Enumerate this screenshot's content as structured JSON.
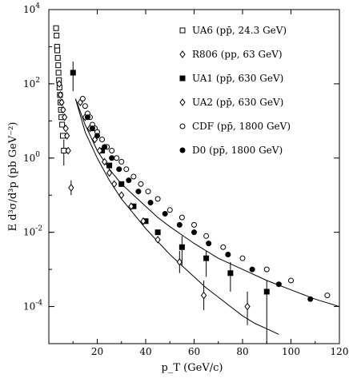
{
  "chart_data": {
    "type": "scatter",
    "xlabel": "p_T (GeV/c)",
    "ylabel": "E d³σ/d³p (pb GeV⁻²)",
    "xlim": [
      0,
      120
    ],
    "ylim_log10": [
      -5,
      4
    ],
    "y_scale": "log",
    "x_ticks": [
      {
        "value": 20,
        "label": "20"
      },
      {
        "value": 40,
        "label": "40"
      },
      {
        "value": 60,
        "label": "60"
      },
      {
        "value": 80,
        "label": "80"
      },
      {
        "value": 100,
        "label": "100"
      },
      {
        "value": 120,
        "label": "120"
      }
    ],
    "y_ticks": [
      {
        "exp": 4,
        "label": "10",
        "sup": "4"
      },
      {
        "exp": 2,
        "label": "10",
        "sup": "2"
      },
      {
        "exp": 0,
        "label": "10",
        "sup": "0"
      },
      {
        "exp": -2,
        "label": "10",
        "sup": "-2"
      },
      {
        "exp": -4,
        "label": "10",
        "sup": "-4"
      }
    ],
    "legend_position": "top-right",
    "series": [
      {
        "name": "UA6 (pp̄, 24.3 GeV)",
        "marker": "open-square",
        "points": [
          [
            3.0,
            3.5
          ],
          [
            3.2,
            3.3
          ],
          [
            3.4,
            3.0
          ],
          [
            3.5,
            2.9
          ],
          [
            3.7,
            2.7
          ],
          [
            3.9,
            2.5
          ],
          [
            4.0,
            2.3
          ],
          [
            4.2,
            2.1
          ],
          [
            4.4,
            1.9
          ],
          [
            4.6,
            1.7
          ],
          [
            4.8,
            1.5
          ],
          [
            5.0,
            1.3
          ],
          [
            5.2,
            1.1
          ],
          [
            5.5,
            0.9
          ],
          [
            5.8,
            0.6
          ],
          [
            6.2,
            0.2
          ]
        ],
        "errors": [
          null,
          null,
          null,
          null,
          null,
          null,
          null,
          null,
          null,
          null,
          null,
          null,
          null,
          null,
          null,
          [
            -0.2,
            0.5
          ]
        ]
      },
      {
        "name": "R806 (pp, 63 GeV)",
        "marker": "open-diamond",
        "points": [
          [
            4.3,
            2.0
          ],
          [
            4.8,
            1.7
          ],
          [
            5.3,
            1.5
          ],
          [
            5.9,
            1.3
          ],
          [
            6.5,
            1.1
          ],
          [
            7.0,
            0.8
          ],
          [
            7.5,
            0.6
          ],
          [
            8.0,
            0.2
          ],
          [
            9.2,
            -0.8
          ]
        ],
        "errors": [
          null,
          null,
          null,
          null,
          null,
          null,
          null,
          null,
          [
            -1.0,
            -0.6
          ]
        ]
      },
      {
        "name": "UA1 (pp̄, 630 GeV)",
        "marker": "filled-square",
        "points": [
          [
            10.0,
            2.3
          ],
          [
            18.0,
            0.8
          ],
          [
            22.0,
            0.2
          ],
          [
            25.0,
            -0.2
          ],
          [
            30.0,
            -0.7
          ],
          [
            35.0,
            -1.3
          ],
          [
            40.0,
            -1.7
          ],
          [
            45.0,
            -2.0
          ],
          [
            55.0,
            -2.4
          ],
          [
            65.0,
            -2.7
          ],
          [
            75.0,
            -3.1
          ],
          [
            90.0,
            -3.6
          ]
        ],
        "errors": [
          [
            1.8,
            2.6
          ],
          null,
          null,
          null,
          null,
          null,
          null,
          null,
          [
            -2.9,
            -2.1
          ],
          [
            -3.2,
            -2.5
          ],
          [
            -3.6,
            -2.8
          ],
          [
            -5.0,
            -3.3
          ]
        ]
      },
      {
        "name": "UA2 (pp̄, 630 GeV)",
        "marker": "open-diamond",
        "points": [
          [
            13.0,
            1.5
          ],
          [
            15.0,
            1.1
          ],
          [
            17.0,
            0.8
          ],
          [
            19.0,
            0.5
          ],
          [
            21.0,
            0.2
          ],
          [
            23.0,
            -0.1
          ],
          [
            25.0,
            -0.4
          ],
          [
            27.0,
            -0.7
          ],
          [
            30.0,
            -1.0
          ],
          [
            34.0,
            -1.3
          ],
          [
            39.0,
            -1.7
          ],
          [
            45.0,
            -2.2
          ],
          [
            54.0,
            -2.8
          ],
          [
            64.0,
            -3.7
          ],
          [
            82.0,
            -4.0
          ]
        ],
        "errors": [
          null,
          null,
          null,
          null,
          null,
          null,
          null,
          null,
          null,
          null,
          null,
          null,
          [
            -3.1,
            -2.5
          ],
          [
            -4.1,
            -3.3
          ],
          [
            -4.5,
            -3.6
          ]
        ]
      },
      {
        "name": "CDF (pp̄, 1800 GeV)",
        "marker": "open-circle",
        "points": [
          [
            14.0,
            1.6
          ],
          [
            15.0,
            1.4
          ],
          [
            16.0,
            1.2
          ],
          [
            17.0,
            1.1
          ],
          [
            18.0,
            0.9
          ],
          [
            19.0,
            0.8
          ],
          [
            20.0,
            0.7
          ],
          [
            22.0,
            0.5
          ],
          [
            24.0,
            0.3
          ],
          [
            26.0,
            0.2
          ],
          [
            28.0,
            0.0
          ],
          [
            30.0,
            -0.1
          ],
          [
            32.0,
            -0.3
          ],
          [
            35.0,
            -0.5
          ],
          [
            38.0,
            -0.7
          ],
          [
            41.0,
            -0.9
          ],
          [
            45.0,
            -1.1
          ],
          [
            50.0,
            -1.4
          ],
          [
            55.0,
            -1.6
          ],
          [
            60.0,
            -1.8
          ],
          [
            65.0,
            -2.1
          ],
          [
            72.0,
            -2.4
          ],
          [
            80.0,
            -2.7
          ],
          [
            90.0,
            -3.0
          ],
          [
            100.0,
            -3.3
          ],
          [
            115.0,
            -3.7
          ]
        ],
        "errors": []
      },
      {
        "name": "D0 (pp̄, 1800 GeV)",
        "marker": "filled-circle",
        "points": [
          [
            16.0,
            1.1
          ],
          [
            18.0,
            0.8
          ],
          [
            20.0,
            0.6
          ],
          [
            23.0,
            0.3
          ],
          [
            26.0,
            0.0
          ],
          [
            29.0,
            -0.3
          ],
          [
            33.0,
            -0.6
          ],
          [
            37.0,
            -0.9
          ],
          [
            42.0,
            -1.2
          ],
          [
            48.0,
            -1.5
          ],
          [
            54.0,
            -1.8
          ],
          [
            60.0,
            -2.0
          ],
          [
            66.0,
            -2.3
          ],
          [
            74.0,
            -2.6
          ],
          [
            84.0,
            -3.0
          ],
          [
            95.0,
            -3.4
          ],
          [
            108.0,
            -3.8
          ]
        ],
        "errors": []
      }
    ],
    "curves": [
      {
        "name": "",
        "points": [
          [
            11.0,
            1.6
          ],
          [
            15.0,
            0.9
          ],
          [
            20.0,
            0.2
          ],
          [
            25.0,
            -0.3
          ],
          [
            30.0,
            -0.7
          ],
          [
            35.0,
            -1.0
          ],
          [
            40.0,
            -1.3
          ],
          [
            45.0,
            -1.6
          ],
          [
            50.0,
            -1.85
          ],
          [
            60.0,
            -2.3
          ],
          [
            70.0,
            -2.7
          ],
          [
            80.0,
            -3.0
          ],
          [
            90.0,
            -3.3
          ],
          [
            100.0,
            -3.55
          ],
          [
            110.0,
            -3.8
          ],
          [
            120.0,
            -4.0
          ]
        ]
      },
      {
        "name": "",
        "points": [
          [
            11.0,
            1.6
          ],
          [
            15.0,
            0.7
          ],
          [
            20.0,
            0.0
          ],
          [
            25.0,
            -0.6
          ],
          [
            30.0,
            -1.1
          ],
          [
            35.0,
            -1.5
          ],
          [
            40.0,
            -1.9
          ],
          [
            45.0,
            -2.25
          ],
          [
            50.0,
            -2.6
          ],
          [
            55.0,
            -2.9
          ],
          [
            60.0,
            -3.2
          ],
          [
            65.0,
            -3.5
          ],
          [
            70.0,
            -3.75
          ],
          [
            75.0,
            -4.0
          ],
          [
            80.0,
            -4.25
          ],
          [
            85.0,
            -4.45
          ],
          [
            90.0,
            -4.6
          ],
          [
            95.0,
            -4.75
          ]
        ]
      }
    ]
  }
}
